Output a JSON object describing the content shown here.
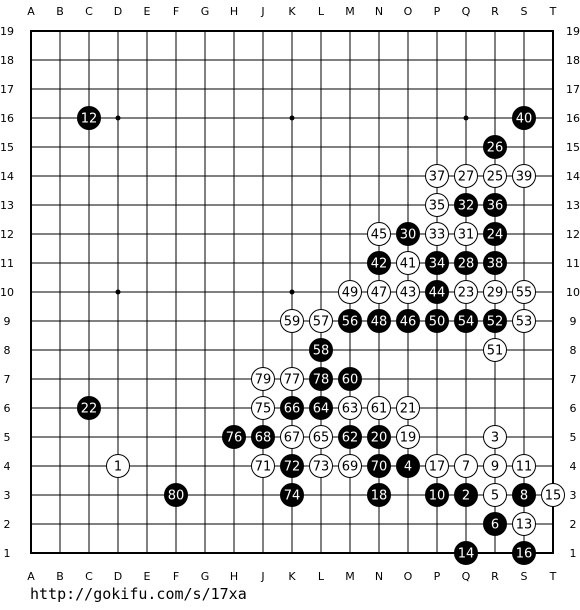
{
  "board": {
    "size": 19,
    "column_labels": [
      "A",
      "B",
      "C",
      "D",
      "E",
      "F",
      "G",
      "H",
      "J",
      "K",
      "L",
      "M",
      "N",
      "O",
      "P",
      "Q",
      "R",
      "S",
      "T"
    ],
    "row_labels": [
      "19",
      "18",
      "17",
      "16",
      "15",
      "14",
      "13",
      "12",
      "11",
      "10",
      "9",
      "8",
      "7",
      "6",
      "5",
      "4",
      "3",
      "2",
      "1"
    ],
    "colors": {
      "background": "#ffffff",
      "line": "#000000",
      "black_stone": "#000000",
      "white_stone": "#ffffff",
      "black_text": "#ffffff",
      "white_text": "#000000"
    },
    "star_points": [
      "D16",
      "K16",
      "Q16",
      "D10",
      "K10"
    ],
    "stones": [
      {
        "n": "1",
        "color": "white",
        "pos": "D4"
      },
      {
        "n": "2",
        "color": "black",
        "pos": "Q3"
      },
      {
        "n": "3",
        "color": "white",
        "pos": "R5"
      },
      {
        "n": "4",
        "color": "black",
        "pos": "O4"
      },
      {
        "n": "5",
        "color": "white",
        "pos": "R3"
      },
      {
        "n": "6",
        "color": "black",
        "pos": "R2"
      },
      {
        "n": "7",
        "color": "white",
        "pos": "Q4"
      },
      {
        "n": "8",
        "color": "black",
        "pos": "S3"
      },
      {
        "n": "9",
        "color": "white",
        "pos": "R4"
      },
      {
        "n": "10",
        "color": "black",
        "pos": "P3"
      },
      {
        "n": "11",
        "color": "white",
        "pos": "S4"
      },
      {
        "n": "12",
        "color": "black",
        "pos": "C16"
      },
      {
        "n": "13",
        "color": "white",
        "pos": "S2"
      },
      {
        "n": "14",
        "color": "black",
        "pos": "Q1"
      },
      {
        "n": "15",
        "color": "white",
        "pos": "T3"
      },
      {
        "n": "16",
        "color": "black",
        "pos": "S1"
      },
      {
        "n": "17",
        "color": "white",
        "pos": "P4"
      },
      {
        "n": "18",
        "color": "black",
        "pos": "N3"
      },
      {
        "n": "19",
        "color": "white",
        "pos": "O5"
      },
      {
        "n": "20",
        "color": "black",
        "pos": "N5"
      },
      {
        "n": "21",
        "color": "white",
        "pos": "O6"
      },
      {
        "n": "22",
        "color": "black",
        "pos": "C6"
      },
      {
        "n": "23",
        "color": "white",
        "pos": "Q10"
      },
      {
        "n": "24",
        "color": "black",
        "pos": "R12"
      },
      {
        "n": "25",
        "color": "white",
        "pos": "R14"
      },
      {
        "n": "26",
        "color": "black",
        "pos": "R15"
      },
      {
        "n": "27",
        "color": "white",
        "pos": "Q14"
      },
      {
        "n": "28",
        "color": "black",
        "pos": "Q11"
      },
      {
        "n": "29",
        "color": "white",
        "pos": "R10"
      },
      {
        "n": "30",
        "color": "black",
        "pos": "O12"
      },
      {
        "n": "31",
        "color": "white",
        "pos": "Q12"
      },
      {
        "n": "32",
        "color": "black",
        "pos": "Q13"
      },
      {
        "n": "33",
        "color": "white",
        "pos": "P12"
      },
      {
        "n": "34",
        "color": "black",
        "pos": "P11"
      },
      {
        "n": "35",
        "color": "white",
        "pos": "P13"
      },
      {
        "n": "36",
        "color": "black",
        "pos": "R13"
      },
      {
        "n": "37",
        "color": "white",
        "pos": "P14"
      },
      {
        "n": "38",
        "color": "black",
        "pos": "R11"
      },
      {
        "n": "39",
        "color": "white",
        "pos": "S14"
      },
      {
        "n": "40",
        "color": "black",
        "pos": "S16"
      },
      {
        "n": "41",
        "color": "white",
        "pos": "O11"
      },
      {
        "n": "42",
        "color": "black",
        "pos": "N11"
      },
      {
        "n": "43",
        "color": "white",
        "pos": "O10"
      },
      {
        "n": "44",
        "color": "black",
        "pos": "P10"
      },
      {
        "n": "45",
        "color": "white",
        "pos": "N12"
      },
      {
        "n": "46",
        "color": "black",
        "pos": "O9"
      },
      {
        "n": "47",
        "color": "white",
        "pos": "N10"
      },
      {
        "n": "48",
        "color": "black",
        "pos": "N9"
      },
      {
        "n": "49",
        "color": "white",
        "pos": "M10"
      },
      {
        "n": "50",
        "color": "black",
        "pos": "P9"
      },
      {
        "n": "51",
        "color": "white",
        "pos": "R8"
      },
      {
        "n": "52",
        "color": "black",
        "pos": "R9"
      },
      {
        "n": "53",
        "color": "white",
        "pos": "S9"
      },
      {
        "n": "54",
        "color": "black",
        "pos": "Q9"
      },
      {
        "n": "55",
        "color": "white",
        "pos": "S10"
      },
      {
        "n": "56",
        "color": "black",
        "pos": "M9"
      },
      {
        "n": "57",
        "color": "white",
        "pos": "L9"
      },
      {
        "n": "58",
        "color": "black",
        "pos": "L8"
      },
      {
        "n": "59",
        "color": "white",
        "pos": "K9"
      },
      {
        "n": "60",
        "color": "black",
        "pos": "M7"
      },
      {
        "n": "61",
        "color": "white",
        "pos": "N6"
      },
      {
        "n": "62",
        "color": "black",
        "pos": "M5"
      },
      {
        "n": "63",
        "color": "white",
        "pos": "M6"
      },
      {
        "n": "64",
        "color": "black",
        "pos": "L6"
      },
      {
        "n": "65",
        "color": "white",
        "pos": "L5"
      },
      {
        "n": "66",
        "color": "black",
        "pos": "K6"
      },
      {
        "n": "67",
        "color": "white",
        "pos": "K5"
      },
      {
        "n": "68",
        "color": "black",
        "pos": "J5"
      },
      {
        "n": "69",
        "color": "white",
        "pos": "M4"
      },
      {
        "n": "70",
        "color": "black",
        "pos": "N4"
      },
      {
        "n": "71",
        "color": "white",
        "pos": "J4"
      },
      {
        "n": "72",
        "color": "black",
        "pos": "K4"
      },
      {
        "n": "73",
        "color": "white",
        "pos": "L4"
      },
      {
        "n": "74",
        "color": "black",
        "pos": "K3"
      },
      {
        "n": "75",
        "color": "white",
        "pos": "J6"
      },
      {
        "n": "76",
        "color": "black",
        "pos": "H5"
      },
      {
        "n": "77",
        "color": "white",
        "pos": "K7"
      },
      {
        "n": "78",
        "color": "black",
        "pos": "L7"
      },
      {
        "n": "79",
        "color": "white",
        "pos": "J7"
      },
      {
        "n": "80",
        "color": "black",
        "pos": "F3"
      }
    ]
  },
  "source_url": "http://gokifu.com/s/17xa"
}
